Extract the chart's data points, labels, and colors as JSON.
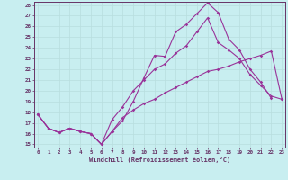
{
  "xlabel": "Windchill (Refroidissement éolien,°C)",
  "bg_color": "#c8eef0",
  "grid_color": "#b8dede",
  "line_color": "#993399",
  "spine_color": "#663366",
  "tick_color": "#663366",
  "label_color": "#663366",
  "xlim": [
    -0.3,
    23.3
  ],
  "ylim": [
    14.7,
    28.3
  ],
  "xticks": [
    0,
    1,
    2,
    3,
    4,
    5,
    6,
    7,
    8,
    9,
    10,
    11,
    12,
    13,
    14,
    15,
    16,
    17,
    18,
    19,
    20,
    21,
    22,
    23
  ],
  "yticks": [
    15,
    16,
    17,
    18,
    19,
    20,
    21,
    22,
    23,
    24,
    25,
    26,
    27,
    28
  ],
  "line1_x": [
    0,
    1,
    2,
    3,
    4,
    5,
    6,
    7,
    8,
    9,
    10,
    11,
    12,
    13,
    14,
    15,
    16,
    17,
    18,
    19,
    20,
    21,
    22
  ],
  "line1_y": [
    17.8,
    16.5,
    16.1,
    16.5,
    16.2,
    16.0,
    15.0,
    16.2,
    17.2,
    19.0,
    21.2,
    23.3,
    23.2,
    25.5,
    26.2,
    27.2,
    28.2,
    27.3,
    24.8,
    23.8,
    22.0,
    20.8,
    19.3
  ],
  "line2_x": [
    0,
    1,
    2,
    3,
    4,
    5,
    6,
    7,
    8,
    9,
    10,
    11,
    12,
    13,
    14,
    15,
    16,
    17,
    18,
    19,
    20,
    21,
    22,
    23
  ],
  "line2_y": [
    17.8,
    16.5,
    16.1,
    16.5,
    16.2,
    16.0,
    15.0,
    17.3,
    18.5,
    20.0,
    21.0,
    22.0,
    22.5,
    23.5,
    24.2,
    25.5,
    26.8,
    24.5,
    23.8,
    23.0,
    21.5,
    20.5,
    19.5,
    19.2
  ],
  "line3_x": [
    0,
    1,
    2,
    3,
    4,
    5,
    6,
    7,
    8,
    9,
    10,
    11,
    12,
    13,
    14,
    15,
    16,
    17,
    18,
    19,
    20,
    21,
    22,
    23
  ],
  "line3_y": [
    17.8,
    16.5,
    16.1,
    16.5,
    16.2,
    16.0,
    15.0,
    16.2,
    17.5,
    18.2,
    18.8,
    19.2,
    19.8,
    20.3,
    20.8,
    21.3,
    21.8,
    22.0,
    22.3,
    22.7,
    23.0,
    23.3,
    23.7,
    19.2
  ]
}
